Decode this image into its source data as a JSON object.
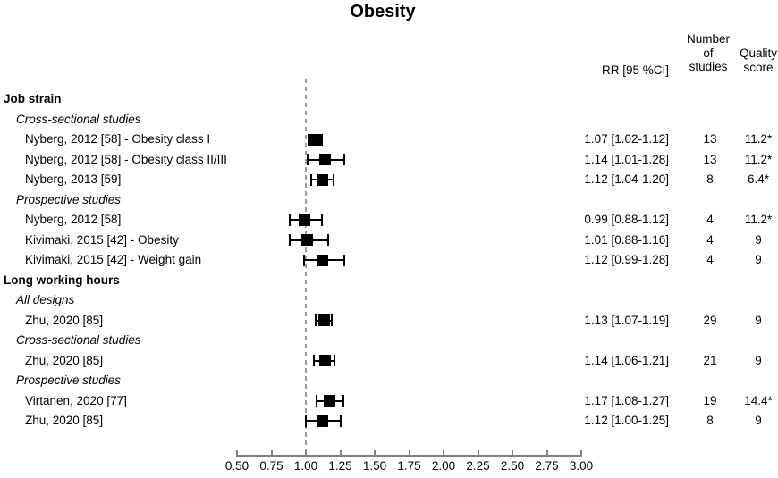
{
  "title": "Obesity",
  "headers": {
    "rr": "RR [95 %CI]",
    "n_studies_lines": [
      "Number",
      "of",
      "studies"
    ],
    "quality_lines": [
      "Quality",
      "score"
    ]
  },
  "colors": {
    "text": "#000000",
    "marker": "#000000",
    "ci_line": "#000000",
    "axis": "#808080",
    "reference_line": "#9a9a9a",
    "background": "#ffffff"
  },
  "chart_data": {
    "type": "scatter",
    "variant": "forest-plot",
    "title": "Obesity",
    "xlabel": "",
    "xlim": [
      0.5,
      3.0
    ],
    "x_ticks": [
      "0.50",
      "0.75",
      "1.00",
      "1.25",
      "1.50",
      "1.75",
      "2.00",
      "2.25",
      "2.50",
      "2.75",
      "3.00"
    ],
    "reference_line_x": 1.0,
    "columns": [
      "RR [95 %CI]",
      "Number of studies",
      "Quality score"
    ],
    "rows": [
      {
        "kind": "group",
        "label": "Job strain"
      },
      {
        "kind": "subgroup",
        "label": "Cross-sectional studies"
      },
      {
        "kind": "study",
        "label": "Nyberg, 2012 [58] - Obesity class I",
        "estimate": 1.07,
        "ci_low": 1.02,
        "ci_high": 1.12,
        "rr_text": "1.07 [1.02-1.12]",
        "n_studies": "13",
        "quality": "11.2*"
      },
      {
        "kind": "study",
        "label": "Nyberg, 2012 [58] - Obesity class II/III",
        "estimate": 1.14,
        "ci_low": 1.01,
        "ci_high": 1.28,
        "rr_text": "1.14 [1.01-1.28]",
        "n_studies": "13",
        "quality": "11.2*"
      },
      {
        "kind": "study",
        "label": "Nyberg, 2013 [59]",
        "estimate": 1.12,
        "ci_low": 1.04,
        "ci_high": 1.2,
        "rr_text": "1.12 [1.04-1.20]",
        "n_studies": "8",
        "quality": "6.4*"
      },
      {
        "kind": "subgroup",
        "label": "Prospective studies"
      },
      {
        "kind": "study",
        "label": "Nyberg, 2012 [58]",
        "estimate": 0.99,
        "ci_low": 0.88,
        "ci_high": 1.12,
        "rr_text": "0.99 [0.88-1.12]",
        "n_studies": "4",
        "quality": "11.2*"
      },
      {
        "kind": "study",
        "label": "Kivimaki, 2015 [42] - Obesity",
        "estimate": 1.01,
        "ci_low": 0.88,
        "ci_high": 1.16,
        "rr_text": "1.01 [0.88-1.16]",
        "n_studies": "4",
        "quality": "9"
      },
      {
        "kind": "study",
        "label": "Kivimaki, 2015 [42] - Weight gain",
        "estimate": 1.12,
        "ci_low": 0.99,
        "ci_high": 1.28,
        "rr_text": "1.12 [0.99-1.28]",
        "n_studies": "4",
        "quality": "9"
      },
      {
        "kind": "group",
        "label": "Long working hours"
      },
      {
        "kind": "subgroup",
        "label": "All designs"
      },
      {
        "kind": "study",
        "label": "Zhu, 2020 [85]",
        "estimate": 1.13,
        "ci_low": 1.07,
        "ci_high": 1.19,
        "rr_text": "1.13 [1.07-1.19]",
        "n_studies": "29",
        "quality": "9"
      },
      {
        "kind": "subgroup",
        "label": "Cross-sectional studies"
      },
      {
        "kind": "study",
        "label": "Zhu, 2020 [85]",
        "estimate": 1.14,
        "ci_low": 1.06,
        "ci_high": 1.21,
        "rr_text": "1.14 [1.06-1.21]",
        "n_studies": "21",
        "quality": "9"
      },
      {
        "kind": "subgroup",
        "label": "Prospective studies"
      },
      {
        "kind": "study",
        "label": "Virtanen, 2020 [77]",
        "estimate": 1.17,
        "ci_low": 1.08,
        "ci_high": 1.27,
        "rr_text": "1.17 [1.08-1.27]",
        "n_studies": "19",
        "quality": "14.4*"
      },
      {
        "kind": "study",
        "label": "Zhu, 2020 [85]",
        "estimate": 1.12,
        "ci_low": 1.0,
        "ci_high": 1.25,
        "rr_text": "1.12 [1.00-1.25]",
        "n_studies": "8",
        "quality": "9"
      }
    ]
  }
}
